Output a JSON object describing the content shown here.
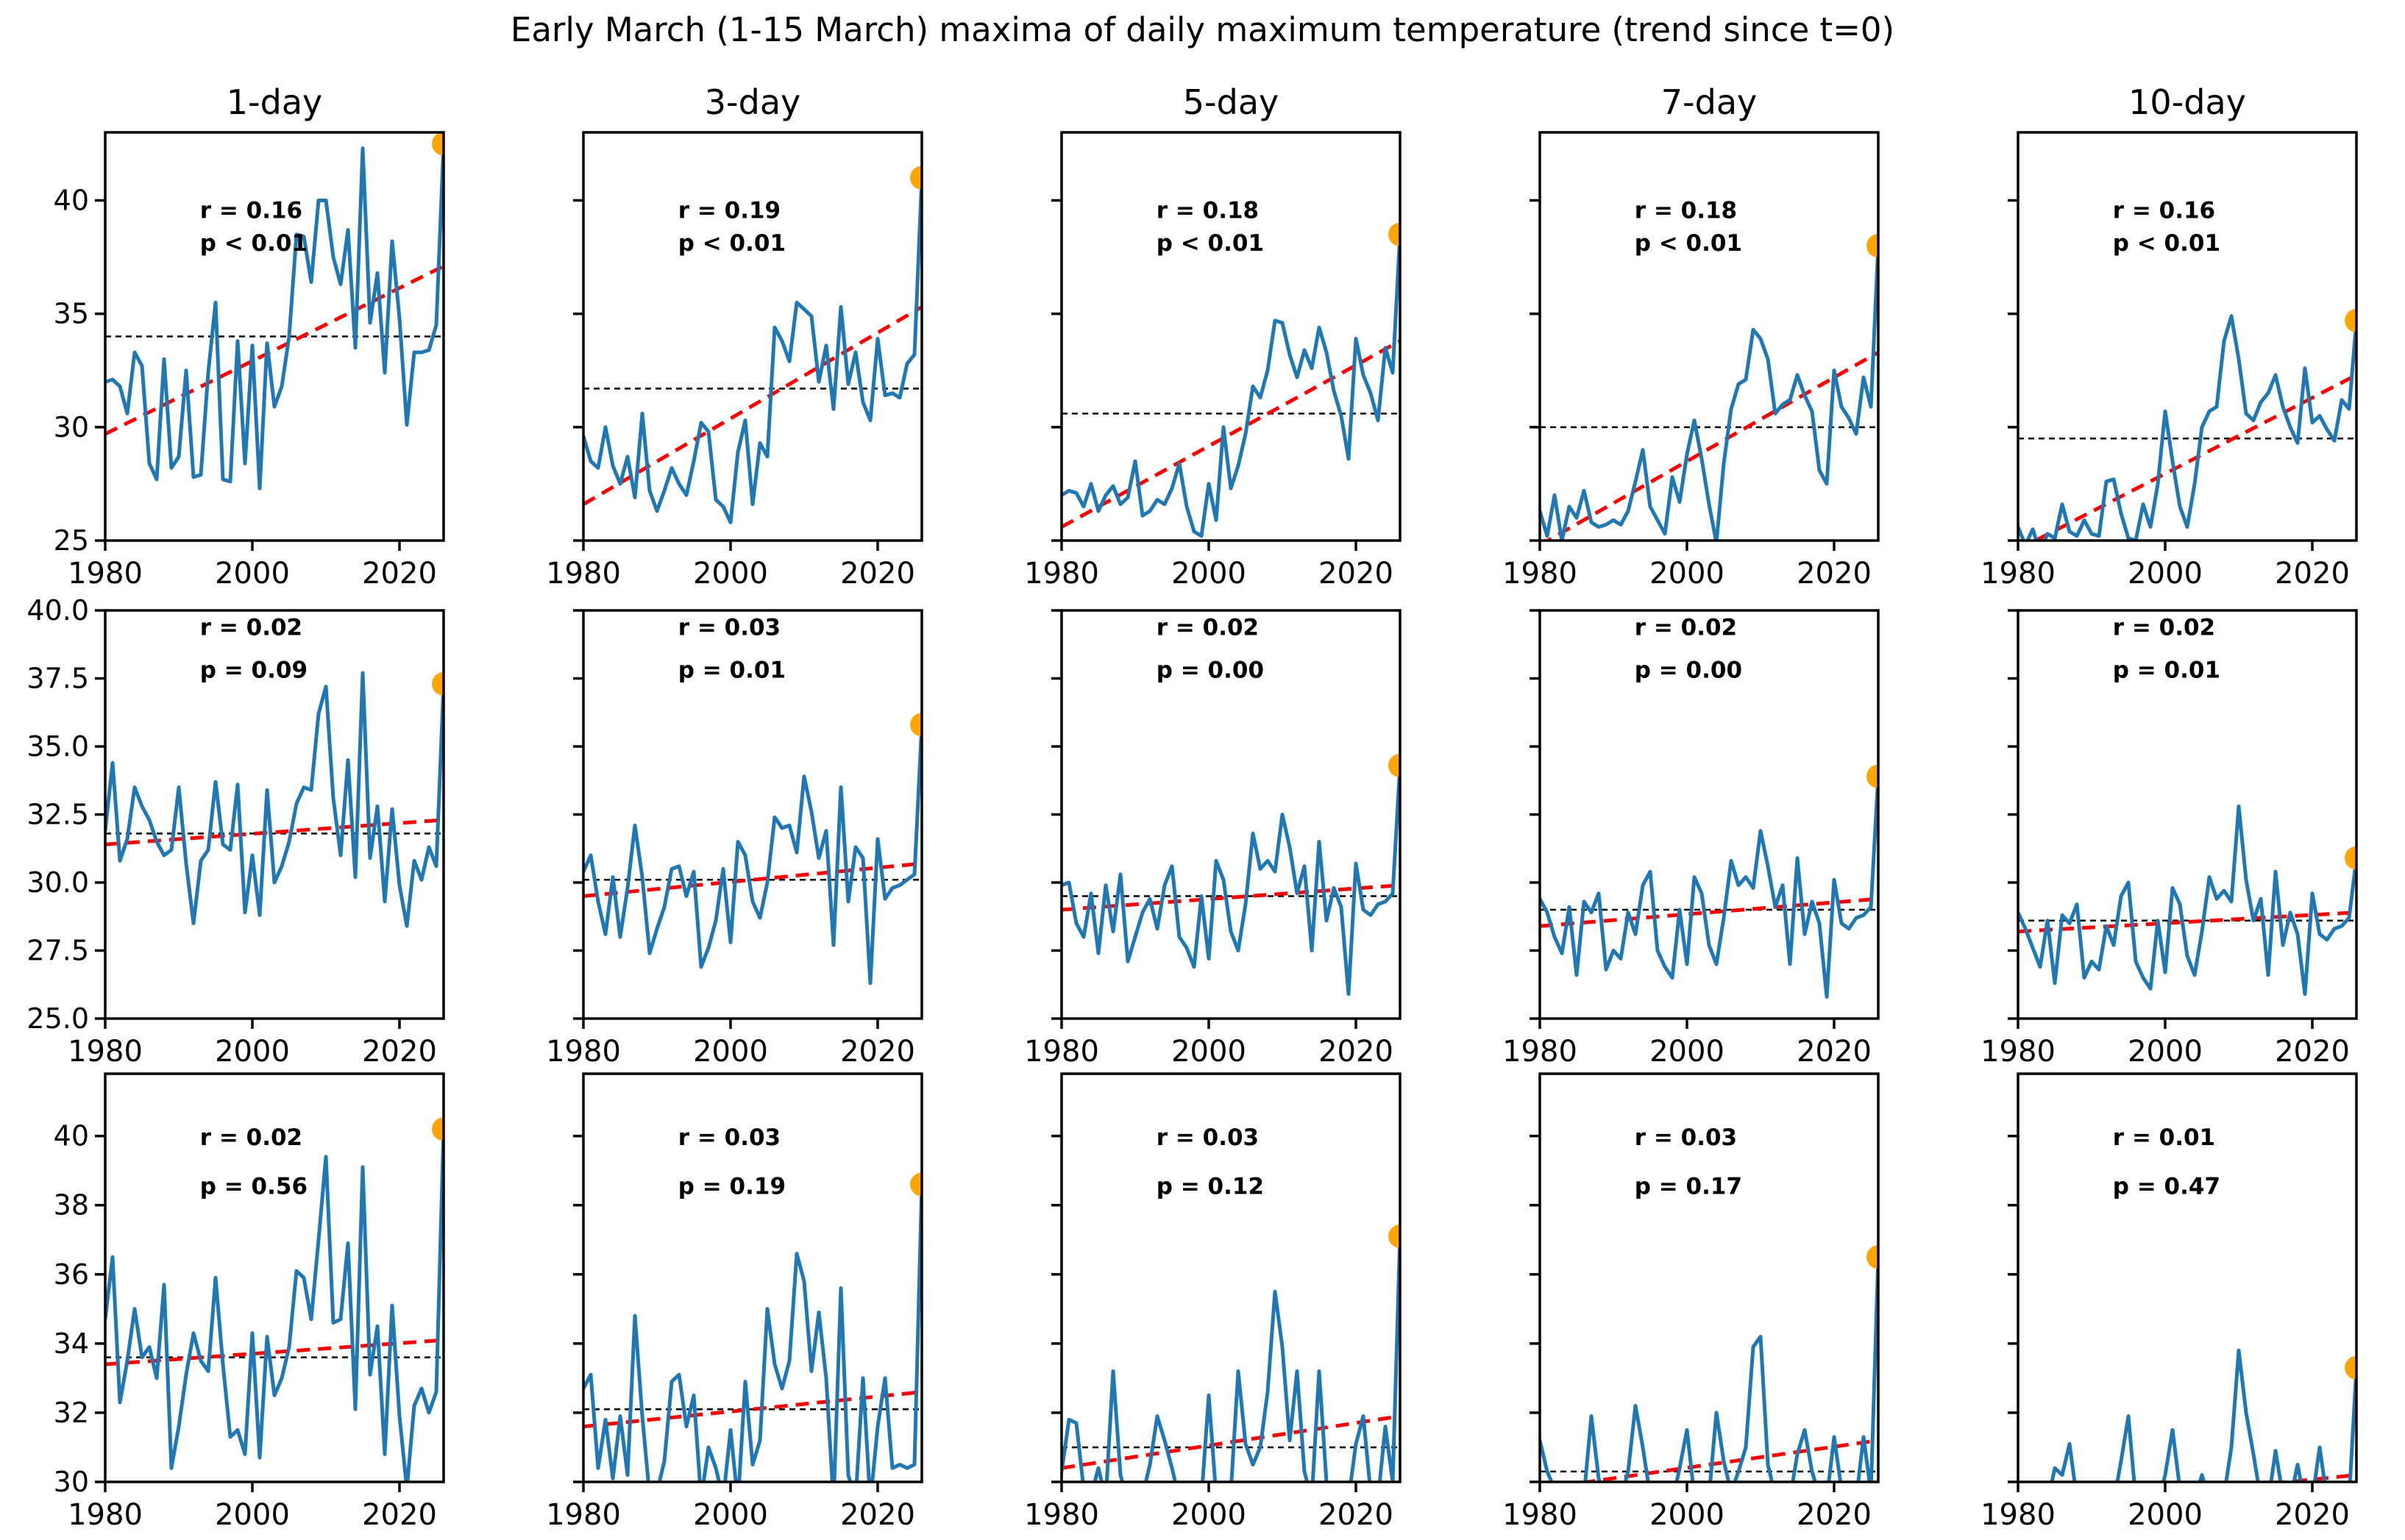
{
  "title": "Early March (1-15 March) maxima of daily maximum temperature (trend since t=0)",
  "colors": {
    "series_blue": "#1f77b4",
    "trend_red": "#ff0000",
    "mean_black": "#000000",
    "marker_orange": "#ffa500",
    "axis_black": "#000000"
  },
  "chart_data": {
    "type": "line",
    "grid": "off",
    "legend": "none",
    "columns": [
      "1-day",
      "3-day",
      "5-day",
      "7-day",
      "10-day"
    ],
    "x_label": "",
    "y_label": "",
    "years": [
      1980,
      1981,
      1982,
      1983,
      1984,
      1985,
      1986,
      1987,
      1988,
      1989,
      1990,
      1991,
      1992,
      1993,
      1994,
      1995,
      1996,
      1997,
      1998,
      1999,
      2000,
      2001,
      2002,
      2003,
      2004,
      2005,
      2006,
      2007,
      2008,
      2009,
      2010,
      2011,
      2012,
      2013,
      2014,
      2015,
      2016,
      2017,
      2018,
      2019,
      2020,
      2021,
      2022,
      2023,
      2024,
      2025,
      2026
    ],
    "xticks": [
      1980,
      2000,
      2020
    ],
    "rows": [
      {
        "ylim": [
          25,
          43.0
        ],
        "yticks": [
          25,
          30,
          35,
          40
        ],
        "ytick_labels": [
          "25",
          "30",
          "35",
          "40"
        ],
        "ann_y": [
          0.21,
          0.29
        ]
      },
      {
        "ylim": [
          25,
          40.0
        ],
        "yticks": [
          25,
          27.5,
          30,
          32.5,
          35,
          37.5,
          40
        ],
        "ytick_labels": [
          "25.0",
          "27.5",
          "30.0",
          "32.5",
          "35.0",
          "37.5",
          "40.0"
        ],
        "ann_y": [
          0.06,
          0.165
        ]
      },
      {
        "ylim": [
          30,
          41.8
        ],
        "yticks": [
          30,
          32,
          34,
          36,
          38,
          40
        ],
        "ytick_labels": [
          "30",
          "32",
          "34",
          "36",
          "38",
          "40"
        ],
        "ann_y": [
          0.175,
          0.295
        ]
      }
    ],
    "panels": [
      {
        "row": 0,
        "col": 0,
        "column_title": "1-day",
        "r_label": "r = 0.16",
        "p_label": "p < 0.01",
        "mean": 34.0,
        "trend_start": 29.7,
        "trend_end": 37.1,
        "values": [
          32.0,
          32.1,
          31.8,
          30.6,
          33.3,
          32.7,
          28.4,
          27.7,
          33.0,
          28.2,
          28.7,
          32.5,
          27.8,
          27.9,
          32.4,
          35.5,
          27.7,
          27.6,
          33.8,
          28.4,
          33.6,
          27.3,
          33.7,
          30.9,
          31.8,
          34.0,
          38.5,
          38.4,
          36.4,
          40.0,
          40.0,
          37.5,
          36.3,
          38.7,
          33.5,
          42.3,
          34.6,
          36.8,
          32.4,
          38.2,
          34.8,
          30.1,
          33.3,
          33.3,
          33.4,
          34.5,
          42.5
        ]
      },
      {
        "row": 0,
        "col": 1,
        "column_title": "3-day",
        "r_label": "r = 0.19",
        "p_label": "p < 0.01",
        "mean": 31.7,
        "trend_start": 26.6,
        "trend_end": 35.3,
        "values": [
          29.6,
          28.5,
          28.2,
          30.0,
          28.3,
          27.5,
          28.7,
          26.9,
          30.6,
          27.2,
          26.3,
          27.2,
          28.2,
          27.5,
          27.0,
          28.5,
          30.2,
          29.8,
          26.8,
          26.5,
          25.8,
          28.9,
          30.3,
          26.6,
          29.3,
          28.7,
          34.4,
          33.8,
          32.9,
          35.5,
          35.2,
          34.9,
          32.0,
          33.6,
          30.8,
          35.3,
          31.9,
          33.3,
          31.1,
          30.3,
          33.9,
          31.4,
          31.5,
          31.3,
          32.8,
          33.2,
          41.0
        ]
      },
      {
        "row": 0,
        "col": 2,
        "column_title": "5-day",
        "r_label": "r = 0.18",
        "p_label": "p < 0.01",
        "mean": 30.6,
        "trend_start": 25.6,
        "trend_end": 33.8,
        "values": [
          27.0,
          27.2,
          27.1,
          26.5,
          27.5,
          26.3,
          27.0,
          27.4,
          26.6,
          26.9,
          28.5,
          26.1,
          26.3,
          26.8,
          26.6,
          27.3,
          28.4,
          26.5,
          25.4,
          25.2,
          27.5,
          25.9,
          30.0,
          27.3,
          28.3,
          29.7,
          31.8,
          31.3,
          32.5,
          34.7,
          34.6,
          33.2,
          32.2,
          33.4,
          32.6,
          34.4,
          33.3,
          31.6,
          30.5,
          28.6,
          33.9,
          32.3,
          31.5,
          30.3,
          33.5,
          32.4,
          38.5
        ]
      },
      {
        "row": 0,
        "col": 3,
        "column_title": "7-day",
        "r_label": "r = 0.18",
        "p_label": "p < 0.01",
        "mean": 30.0,
        "trend_start": 24.8,
        "trend_end": 33.3,
        "values": [
          26.3,
          25.2,
          27.0,
          25.0,
          26.5,
          26.0,
          27.2,
          25.8,
          25.6,
          25.7,
          25.9,
          25.7,
          26.3,
          27.6,
          29.0,
          26.5,
          25.9,
          25.3,
          27.8,
          26.7,
          28.8,
          30.3,
          28.6,
          26.6,
          24.9,
          28.4,
          30.8,
          31.9,
          32.1,
          34.3,
          33.9,
          33.0,
          30.6,
          31.0,
          31.2,
          32.3,
          31.4,
          30.7,
          28.1,
          27.5,
          32.5,
          30.9,
          30.4,
          29.7,
          32.2,
          30.9,
          38.0
        ]
      },
      {
        "row": 0,
        "col": 4,
        "column_title": "10-day",
        "r_label": "r = 0.16",
        "p_label": "p < 0.01",
        "mean": 29.5,
        "trend_start": 24.6,
        "trend_end": 32.3,
        "values": [
          25.6,
          24.8,
          25.5,
          24.5,
          25.3,
          25.1,
          26.6,
          25.4,
          25.2,
          25.9,
          25.3,
          25.2,
          27.6,
          27.7,
          26.2,
          25.1,
          25.0,
          26.6,
          25.6,
          27.5,
          30.7,
          28.5,
          26.5,
          25.6,
          27.5,
          30.0,
          30.7,
          30.9,
          33.8,
          34.9,
          33.0,
          30.6,
          30.3,
          31.1,
          31.5,
          32.3,
          30.9,
          30.0,
          29.3,
          32.6,
          30.2,
          30.5,
          29.9,
          29.4,
          31.2,
          30.8,
          34.7
        ]
      },
      {
        "row": 1,
        "col": 0,
        "column_title": "",
        "r_label": "r = 0.02",
        "p_label": "p = 0.09",
        "mean": 31.8,
        "trend_start": 31.4,
        "trend_end": 32.3,
        "values": [
          31.9,
          34.4,
          30.8,
          31.6,
          33.5,
          32.8,
          32.3,
          31.5,
          31.0,
          31.2,
          33.5,
          30.7,
          28.5,
          30.8,
          31.2,
          33.7,
          31.4,
          31.2,
          33.6,
          28.9,
          31.0,
          28.8,
          33.4,
          30.0,
          30.6,
          31.5,
          32.9,
          33.5,
          33.4,
          36.2,
          37.2,
          33.1,
          31.0,
          34.5,
          30.2,
          37.7,
          30.9,
          32.8,
          29.3,
          32.7,
          29.9,
          28.4,
          30.8,
          30.1,
          31.3,
          30.6,
          37.3
        ]
      },
      {
        "row": 1,
        "col": 1,
        "column_title": "",
        "r_label": "r = 0.03",
        "p_label": "p = 0.01",
        "mean": 30.1,
        "trend_start": 29.5,
        "trend_end": 30.7,
        "values": [
          30.4,
          31.0,
          29.3,
          28.1,
          30.2,
          28.0,
          29.8,
          32.1,
          30.2,
          27.4,
          28.3,
          29.1,
          30.5,
          30.6,
          29.5,
          30.4,
          26.9,
          27.6,
          28.6,
          30.5,
          27.8,
          31.5,
          31.0,
          29.3,
          28.7,
          30.0,
          32.4,
          32.0,
          32.1,
          31.1,
          33.9,
          32.6,
          30.9,
          31.9,
          27.7,
          33.5,
          29.3,
          31.3,
          30.9,
          26.3,
          31.6,
          29.4,
          29.8,
          29.9,
          30.1,
          30.3,
          35.8
        ]
      },
      {
        "row": 1,
        "col": 2,
        "column_title": "",
        "r_label": "r = 0.02",
        "p_label": "p = 0.00",
        "mean": 29.5,
        "trend_start": 29.0,
        "trend_end": 29.9,
        "values": [
          29.9,
          30.0,
          28.5,
          28.0,
          29.6,
          27.4,
          29.9,
          28.2,
          30.3,
          27.1,
          28.0,
          28.9,
          29.4,
          28.3,
          29.9,
          30.6,
          28.0,
          27.6,
          26.9,
          29.5,
          27.2,
          30.8,
          30.1,
          28.2,
          27.5,
          29.2,
          31.8,
          30.5,
          30.8,
          30.4,
          32.5,
          31.3,
          29.6,
          30.6,
          27.5,
          31.5,
          28.6,
          29.8,
          29.1,
          25.9,
          30.7,
          29.0,
          28.8,
          29.2,
          29.3,
          29.6,
          34.3
        ]
      },
      {
        "row": 1,
        "col": 3,
        "column_title": "",
        "r_label": "r = 0.02",
        "p_label": "p = 0.00",
        "mean": 29.0,
        "trend_start": 28.4,
        "trend_end": 29.4,
        "values": [
          29.4,
          28.9,
          28.0,
          27.4,
          29.1,
          26.6,
          29.3,
          28.9,
          29.6,
          26.8,
          27.5,
          27.2,
          28.9,
          28.1,
          29.9,
          30.4,
          27.5,
          26.9,
          26.5,
          29.0,
          27.0,
          30.2,
          29.6,
          27.7,
          27.0,
          28.7,
          30.8,
          29.9,
          30.2,
          29.8,
          31.9,
          30.6,
          29.1,
          29.9,
          27.0,
          30.9,
          28.1,
          29.3,
          28.5,
          25.8,
          30.1,
          28.5,
          28.3,
          28.7,
          28.8,
          29.1,
          33.9
        ]
      },
      {
        "row": 1,
        "col": 4,
        "column_title": "",
        "r_label": "r = 0.02",
        "p_label": "p = 0.01",
        "mean": 28.6,
        "trend_start": 28.2,
        "trend_end": 28.9,
        "values": [
          28.9,
          28.3,
          27.6,
          26.9,
          28.6,
          26.3,
          28.8,
          28.5,
          29.2,
          26.5,
          27.1,
          26.8,
          28.4,
          27.7,
          29.5,
          30.0,
          27.1,
          26.5,
          26.1,
          28.6,
          26.7,
          29.8,
          29.2,
          27.3,
          26.6,
          28.2,
          30.2,
          29.4,
          29.7,
          29.3,
          32.8,
          30.1,
          28.6,
          29.4,
          26.6,
          30.4,
          27.7,
          28.9,
          28.1,
          25.9,
          29.6,
          28.1,
          27.9,
          28.3,
          28.4,
          28.7,
          30.9
        ]
      },
      {
        "row": 2,
        "col": 0,
        "column_title": "",
        "r_label": "r = 0.02",
        "p_label": "p = 0.56",
        "mean": 33.6,
        "trend_start": 33.4,
        "trend_end": 34.1,
        "values": [
          34.7,
          36.5,
          32.3,
          33.5,
          35.0,
          33.6,
          33.9,
          33.0,
          35.7,
          30.4,
          31.6,
          33.1,
          34.3,
          33.5,
          33.2,
          35.9,
          33.4,
          31.3,
          31.5,
          30.8,
          34.3,
          30.7,
          34.2,
          32.5,
          33.0,
          33.9,
          36.1,
          35.9,
          34.7,
          37.0,
          39.4,
          34.6,
          34.7,
          36.9,
          32.1,
          39.1,
          33.1,
          34.5,
          30.8,
          35.1,
          31.9,
          29.8,
          32.2,
          32.7,
          32.0,
          32.6,
          40.2
        ]
      },
      {
        "row": 2,
        "col": 1,
        "column_title": "",
        "r_label": "r = 0.03",
        "p_label": "p = 0.19",
        "mean": 32.1,
        "trend_start": 31.6,
        "trend_end": 32.6,
        "values": [
          32.7,
          33.1,
          30.4,
          31.8,
          30.1,
          31.9,
          30.2,
          34.8,
          31.9,
          29.6,
          29.7,
          30.6,
          32.9,
          33.1,
          31.6,
          32.5,
          29.5,
          31.0,
          30.4,
          29.5,
          31.5,
          29.4,
          32.9,
          30.5,
          31.2,
          35.0,
          33.4,
          32.7,
          33.5,
          36.6,
          35.8,
          33.2,
          34.9,
          33.0,
          29.4,
          35.6,
          30.2,
          29.5,
          33.0,
          29.4,
          31.6,
          33.0,
          30.4,
          30.5,
          30.4,
          30.5,
          38.6
        ]
      },
      {
        "row": 2,
        "col": 2,
        "column_title": "",
        "r_label": "r = 0.03",
        "p_label": "p = 0.12",
        "mean": 31.0,
        "trend_start": 30.4,
        "trend_end": 31.9,
        "values": [
          30.3,
          31.8,
          31.7,
          29.8,
          29.6,
          30.4,
          29.5,
          33.2,
          30.2,
          29.4,
          29.5,
          29.6,
          30.5,
          31.9,
          31.2,
          30.4,
          29.5,
          29.8,
          29.4,
          29.5,
          32.5,
          29.6,
          29.5,
          29.7,
          33.2,
          31.1,
          30.5,
          31.0,
          32.6,
          35.5,
          33.9,
          31.2,
          33.2,
          30.3,
          29.5,
          33.2,
          30.0,
          29.6,
          29.8,
          29.5,
          31.1,
          31.9,
          29.7,
          29.5,
          31.6,
          30.0,
          37.1
        ]
      },
      {
        "row": 2,
        "col": 3,
        "column_title": "",
        "r_label": "r = 0.03",
        "p_label": "p = 0.17",
        "mean": 30.3,
        "trend_start": 29.8,
        "trend_end": 31.2,
        "values": [
          31.2,
          30.3,
          29.8,
          29.7,
          29.6,
          29.8,
          29.6,
          31.9,
          30.1,
          29.5,
          29.6,
          29.5,
          30.3,
          32.2,
          31.0,
          29.6,
          29.5,
          29.7,
          29.4,
          30.4,
          31.5,
          29.6,
          29.5,
          29.6,
          32.0,
          30.6,
          29.7,
          30.3,
          31.0,
          33.9,
          34.2,
          30.5,
          29.6,
          29.9,
          29.5,
          30.8,
          31.5,
          30.3,
          29.6,
          29.5,
          31.3,
          29.8,
          29.6,
          29.5,
          31.3,
          29.7,
          36.5
        ]
      },
      {
        "row": 2,
        "col": 4,
        "column_title": "",
        "r_label": "r = 0.01",
        "p_label": "p = 0.47",
        "mean": 29.9,
        "trend_start": 29.2,
        "trend_end": 30.2,
        "values": [
          29.7,
          29.5,
          29.4,
          29.5,
          29.4,
          30.4,
          30.2,
          31.1,
          29.5,
          29.4,
          29.5,
          29.4,
          29.5,
          29.4,
          30.6,
          31.9,
          29.5,
          29.4,
          29.5,
          29.4,
          30.2,
          31.5,
          29.8,
          29.4,
          29.5,
          30.2,
          29.5,
          29.4,
          29.6,
          31.0,
          33.8,
          32.0,
          30.8,
          29.5,
          29.4,
          30.9,
          29.6,
          29.5,
          30.5,
          29.4,
          29.5,
          31.0,
          29.5,
          29.4,
          29.6,
          29.5,
          33.3
        ]
      }
    ]
  }
}
